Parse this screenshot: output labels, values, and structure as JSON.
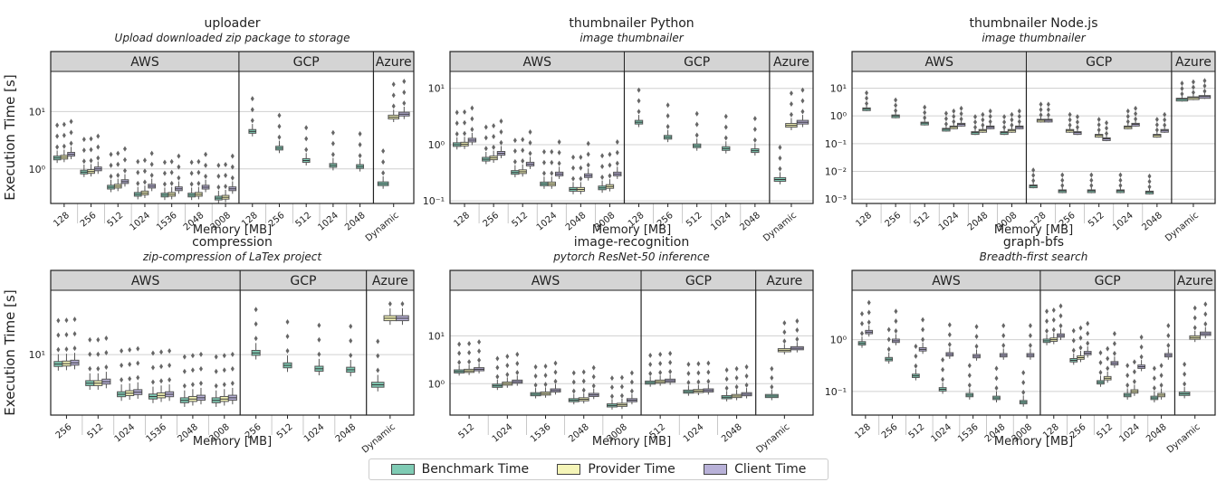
{
  "legend": [
    {
      "label": "Benchmark Time",
      "color": "#7fcbb4"
    },
    {
      "label": "Provider Time",
      "color": "#f5f5b8"
    },
    {
      "label": "Client Time",
      "color": "#b8b1d8"
    }
  ],
  "chart_data": [
    {
      "type": "box",
      "title": "uploader",
      "subtitle": "Upload downloaded zip package to storage",
      "xlabel": "Memory [MB]",
      "ylabel": "Execution Time [s]",
      "yscale": "log",
      "ylim": [
        0.25,
        50
      ],
      "yticks": [
        1,
        10
      ],
      "yticklabels": [
        "10⁰",
        "10¹"
      ],
      "groups": [
        {
          "name": "AWS",
          "categories": [
            "128",
            "256",
            "512",
            "1024",
            "1536",
            "2048",
            "3008"
          ],
          "values": [
            [
              1.55,
              1.6,
              1.8
            ],
            [
              0.88,
              0.9,
              1.0
            ],
            [
              0.48,
              0.5,
              0.6
            ],
            [
              0.36,
              0.38,
              0.5
            ],
            [
              0.35,
              0.36,
              0.45
            ],
            [
              0.35,
              0.36,
              0.48
            ],
            [
              0.31,
              0.32,
              0.45
            ]
          ]
        },
        {
          "name": "GCP",
          "categories": [
            "128",
            "256",
            "512",
            "1024",
            "2048"
          ],
          "values": [
            [
              4.5,
              null,
              null
            ],
            [
              2.3,
              null,
              null
            ],
            [
              1.4,
              null,
              null
            ],
            [
              1.15,
              null,
              null
            ],
            [
              1.1,
              null,
              null
            ]
          ]
        },
        {
          "name": "Azure",
          "categories": [
            "Dynamic"
          ],
          "values": [
            [
              0.55,
              8,
              9
            ]
          ]
        }
      ]
    },
    {
      "type": "box",
      "title": "thumbnailer Python",
      "subtitle": "image thumbnailer",
      "xlabel": "Memory [MB]",
      "ylabel": "",
      "yscale": "log",
      "ylim": [
        0.09,
        20
      ],
      "yticks": [
        0.1,
        1,
        10
      ],
      "yticklabels": [
        "10⁻¹",
        "10⁰",
        "10¹"
      ],
      "groups": [
        {
          "name": "AWS",
          "categories": [
            "128",
            "256",
            "512",
            "1024",
            "2048",
            "3008"
          ],
          "values": [
            [
              1.0,
              1.02,
              1.2
            ],
            [
              0.55,
              0.58,
              0.7
            ],
            [
              0.32,
              0.33,
              0.45
            ],
            [
              0.2,
              0.2,
              0.3
            ],
            [
              0.16,
              0.16,
              0.28
            ],
            [
              0.17,
              0.18,
              0.3
            ]
          ]
        },
        {
          "name": "GCP",
          "categories": [
            "128",
            "256",
            "512",
            "1024",
            "2048"
          ],
          "values": [
            [
              2.5,
              null,
              null
            ],
            [
              1.35,
              null,
              null
            ],
            [
              0.95,
              null,
              null
            ],
            [
              0.85,
              null,
              null
            ],
            [
              0.78,
              null,
              null
            ]
          ]
        },
        {
          "name": "Azure",
          "categories": [
            "Dynamic"
          ],
          "values": [
            [
              0.24,
              2.2,
              2.5
            ]
          ]
        }
      ]
    },
    {
      "type": "box",
      "title": "thumbnailer Node.js",
      "subtitle": "image thumbnailer",
      "xlabel": "Memory [MB]",
      "ylabel": "",
      "yscale": "log",
      "ylim": [
        0.0007,
        40
      ],
      "yticks": [
        0.001,
        0.01,
        0.1,
        1,
        10
      ],
      "yticklabels": [
        "10⁻³",
        "10⁻²",
        "10⁻¹",
        "10⁰",
        "10¹"
      ],
      "groups": [
        {
          "name": "AWS",
          "categories": [
            "128",
            "256",
            "512",
            "1024",
            "2048",
            "3008"
          ],
          "values": [
            [
              1.8,
              null,
              null
            ],
            [
              1.0,
              null,
              null
            ],
            [
              0.55,
              null,
              null
            ],
            [
              0.33,
              0.4,
              0.5
            ],
            [
              0.25,
              0.3,
              0.4
            ],
            [
              0.25,
              0.3,
              0.4
            ]
          ]
        },
        {
          "name": "GCP",
          "categories": [
            "128",
            "256",
            "512",
            "1024",
            "2048"
          ],
          "values": [
            [
              0.003,
              0.7,
              0.7
            ],
            [
              0.002,
              0.3,
              0.25
            ],
            [
              0.002,
              0.2,
              0.15
            ],
            [
              0.002,
              0.4,
              0.5
            ],
            [
              0.0018,
              0.2,
              0.3
            ]
          ]
        },
        {
          "name": "Azure",
          "categories": [
            "Dynamic"
          ],
          "values": [
            [
              4.0,
              4.5,
              5.0
            ]
          ]
        }
      ]
    },
    {
      "type": "box",
      "title": "compression",
      "subtitle": "zip-compression of LaTex project",
      "xlabel": "Memory [MB]",
      "ylabel": "Execution Time [s]",
      "yscale": "log",
      "ylim": [
        1.6,
        70
      ],
      "yticks": [
        10
      ],
      "yticklabels": [
        "10¹"
      ],
      "groups": [
        {
          "name": "AWS",
          "categories": [
            "256",
            "512",
            "1024",
            "1536",
            "2048",
            "3008"
          ],
          "values": [
            [
              7.5,
              7.6,
              7.8
            ],
            [
              4.2,
              4.2,
              4.4
            ],
            [
              3.0,
              3.1,
              3.2
            ],
            [
              2.8,
              2.9,
              3.0
            ],
            [
              2.5,
              2.6,
              2.7
            ],
            [
              2.5,
              2.6,
              2.7
            ]
          ]
        },
        {
          "name": "GCP",
          "categories": [
            "256",
            "512",
            "1024",
            "2048"
          ],
          "values": [
            [
              10.5,
              null,
              null
            ],
            [
              7.2,
              null,
              null
            ],
            [
              6.5,
              null,
              null
            ],
            [
              6.3,
              null,
              null
            ]
          ]
        },
        {
          "name": "Azure",
          "categories": [
            "Dynamic"
          ],
          "values": [
            [
              4.0,
              30,
              30
            ]
          ]
        }
      ]
    },
    {
      "type": "box",
      "title": "image-recognition",
      "subtitle": "pytorch ResNet-50 inference",
      "xlabel": "Memory [MB]",
      "ylabel": "",
      "yscale": "log",
      "ylim": [
        0.22,
        90
      ],
      "yticks": [
        1,
        10
      ],
      "yticklabels": [
        "10⁰",
        "10¹"
      ],
      "groups": [
        {
          "name": "AWS",
          "categories": [
            "512",
            "1024",
            "1536",
            "2048",
            "3008"
          ],
          "values": [
            [
              1.8,
              1.85,
              2.0
            ],
            [
              0.9,
              1.0,
              1.1
            ],
            [
              0.6,
              0.62,
              0.72
            ],
            [
              0.45,
              0.47,
              0.58
            ],
            [
              0.35,
              0.36,
              0.45
            ]
          ]
        },
        {
          "name": "GCP",
          "categories": [
            "512",
            "1024",
            "2048"
          ],
          "values": [
            [
              1.05,
              1.1,
              1.15
            ],
            [
              0.68,
              0.7,
              0.72
            ],
            [
              0.52,
              0.55,
              0.6
            ]
          ]
        },
        {
          "name": "Azure",
          "categories": [
            "Dynamic"
          ],
          "values": [
            [
              0.55,
              5,
              5.5
            ]
          ]
        }
      ]
    },
    {
      "type": "box",
      "title": "graph-bfs",
      "subtitle": "Breadth-first search",
      "xlabel": "Memory [MB]",
      "ylabel": "",
      "yscale": "log",
      "ylim": [
        0.035,
        9
      ],
      "yticks": [
        0.1,
        1
      ],
      "yticklabels": [
        "10⁻¹",
        "10⁰"
      ],
      "groups": [
        {
          "name": "AWS",
          "categories": [
            "128",
            "256",
            "512",
            "1024",
            "1536",
            "2048",
            "3008"
          ],
          "values": [
            [
              0.85,
              null,
              1.4
            ],
            [
              0.42,
              null,
              0.95
            ],
            [
              0.2,
              null,
              0.65
            ],
            [
              0.11,
              null,
              0.52
            ],
            [
              0.085,
              null,
              0.48
            ],
            [
              0.075,
              null,
              0.5
            ],
            [
              0.062,
              null,
              0.5
            ]
          ]
        },
        {
          "name": "GCP",
          "categories": [
            "128",
            "256",
            "512",
            "1024",
            "2048"
          ],
          "values": [
            [
              0.95,
              1.0,
              1.2
            ],
            [
              0.4,
              0.45,
              0.55
            ],
            [
              0.15,
              0.18,
              0.35
            ],
            [
              0.085,
              0.1,
              0.3
            ],
            [
              0.075,
              0.085,
              0.5
            ]
          ]
        },
        {
          "name": "Azure",
          "categories": [
            "Dynamic"
          ],
          "values": [
            [
              0.09,
              1.1,
              1.3
            ]
          ]
        }
      ]
    }
  ]
}
